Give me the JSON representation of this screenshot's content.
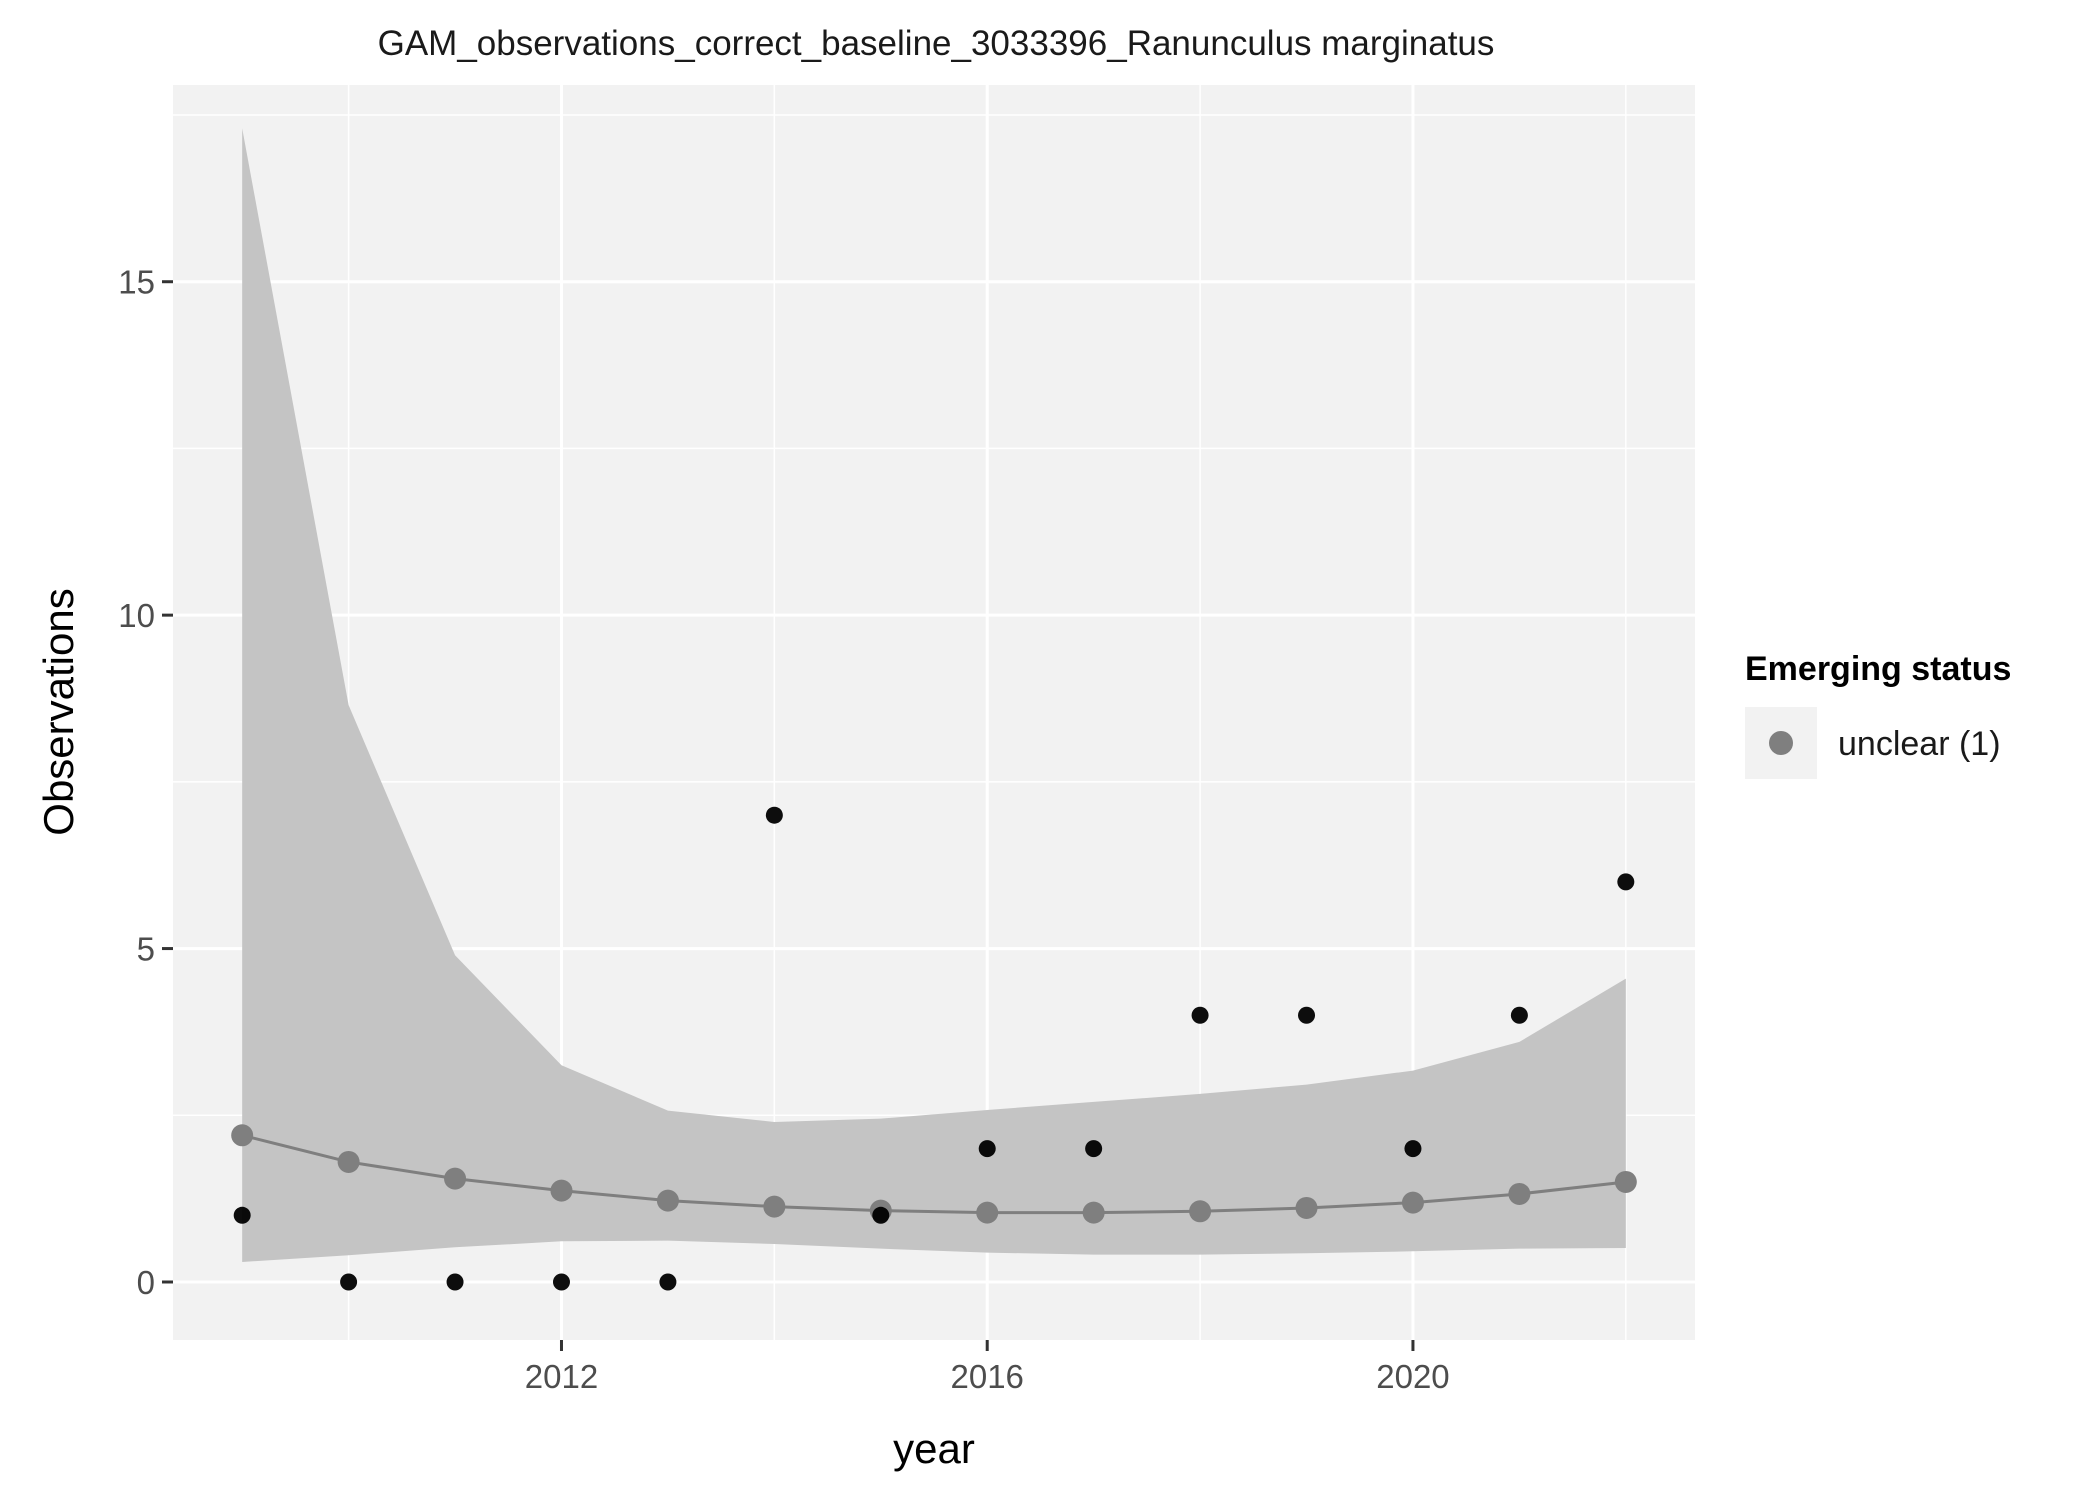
{
  "chart_data": {
    "type": "scatter",
    "title": "GAM_observations_correct_baseline_3033396_Ranunculus marginatus",
    "xlabel": "year",
    "ylabel": "Observations",
    "xlim": [
      2008.35,
      2022.65
    ],
    "ylim": [
      -0.87,
      17.95
    ],
    "x_ticks": [
      2012,
      2016,
      2020
    ],
    "x_tick_labels": [
      "2012",
      "2016",
      "2020"
    ],
    "y_ticks": [
      0,
      5,
      10,
      15
    ],
    "y_tick_labels": [
      "0",
      "5",
      "10",
      "15"
    ],
    "grid": true,
    "legend": {
      "title": "Emerging status",
      "placement": "right",
      "entries": [
        {
          "label": "unclear (1)",
          "color": "#7f7f7f"
        }
      ]
    },
    "series": [
      {
        "type": "scatter",
        "color": "#000000",
        "x": [
          2009,
          2010,
          2011,
          2012,
          2013,
          2014,
          2015,
          2016,
          2017,
          2018,
          2019,
          2020,
          2021,
          2022
        ],
        "y": [
          1,
          0,
          0,
          0,
          0,
          7,
          1,
          2,
          2,
          4,
          4,
          2,
          4,
          6
        ]
      },
      {
        "name": "unclear (1)",
        "type": "line",
        "color": "#7f7f7f",
        "x": [
          2009,
          2010,
          2011,
          2012,
          2013,
          2014,
          2015,
          2016,
          2017,
          2018,
          2019,
          2020,
          2021,
          2022
        ],
        "y": [
          2.2,
          1.8,
          1.55,
          1.37,
          1.22,
          1.13,
          1.07,
          1.04,
          1.04,
          1.06,
          1.11,
          1.19,
          1.32,
          1.5
        ],
        "lower": [
          0.3,
          0.4,
          0.52,
          0.61,
          0.62,
          0.57,
          0.5,
          0.44,
          0.41,
          0.41,
          0.43,
          0.46,
          0.5,
          0.51
        ],
        "upper": [
          17.3,
          8.65,
          4.9,
          3.25,
          2.57,
          2.4,
          2.45,
          2.58,
          2.7,
          2.82,
          2.96,
          3.17,
          3.6,
          4.55
        ]
      }
    ],
    "colors": {
      "panel_background": "#f2f2f2",
      "grid": "#ffffff",
      "ribbon": "#c4c4c4",
      "fit": "#7f7f7f",
      "points": "#000000"
    }
  }
}
